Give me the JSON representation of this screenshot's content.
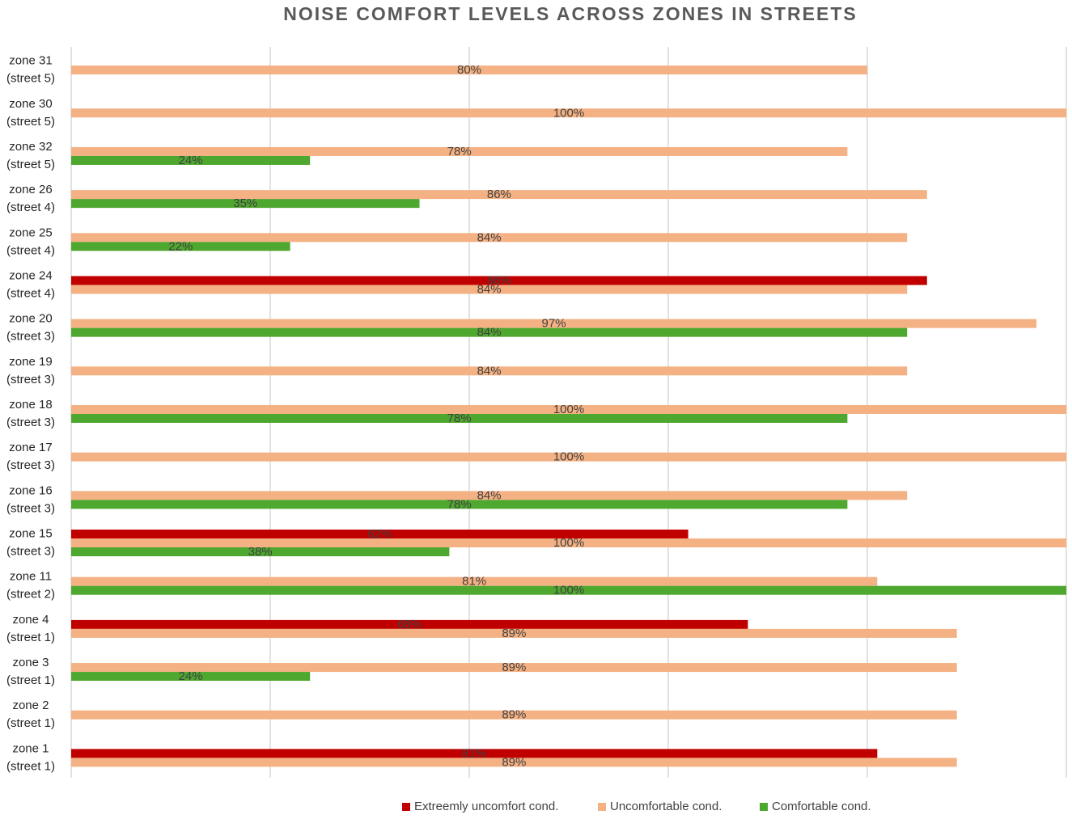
{
  "chart_data": {
    "type": "bar",
    "orientation": "horizontal",
    "title": "NOISE COMFORT LEVELS ACROSS ZONES IN STREETS",
    "xlim": [
      0,
      100
    ],
    "grid": true,
    "legend_position": "bottom",
    "categories": [
      {
        "zone": "zone 31",
        "street": "(street 5)"
      },
      {
        "zone": "zone 30",
        "street": "(street 5)"
      },
      {
        "zone": "zone 32",
        "street": "(street 5)"
      },
      {
        "zone": "zone 26",
        "street": "(street 4)"
      },
      {
        "zone": "zone 25",
        "street": "(street 4)"
      },
      {
        "zone": "zone 24",
        "street": "(street 4)"
      },
      {
        "zone": "zone 20",
        "street": "(street 3)"
      },
      {
        "zone": "zone 19",
        "street": "(street 3)"
      },
      {
        "zone": "zone 18",
        "street": "(street 3)"
      },
      {
        "zone": "zone 17",
        "street": "(street 3)"
      },
      {
        "zone": "zone 16",
        "street": "(street 3)"
      },
      {
        "zone": "zone 15",
        "street": "(street 3)"
      },
      {
        "zone": "zone 11",
        "street": "(street 2)"
      },
      {
        "zone": "zone 4",
        "street": "(street 1)"
      },
      {
        "zone": "zone 3",
        "street": "(street 1)"
      },
      {
        "zone": "zone 2",
        "street": "(street 1)"
      },
      {
        "zone": "zone 1",
        "street": "(street 1)"
      }
    ],
    "series": [
      {
        "name": "Extreemly uncomfort cond.",
        "color": "#c00000",
        "values": [
          null,
          null,
          null,
          null,
          null,
          86,
          null,
          null,
          null,
          null,
          null,
          62,
          null,
          68,
          null,
          null,
          81
        ]
      },
      {
        "name": "Uncomfortable cond.",
        "color": "#f4b183",
        "values": [
          80,
          100,
          78,
          86,
          84,
          84,
          97,
          84,
          100,
          100,
          84,
          100,
          81,
          89,
          89,
          89,
          89
        ]
      },
      {
        "name": "Comfortable cond.",
        "color": "#4ea72e",
        "values": [
          null,
          null,
          24,
          35,
          22,
          null,
          84,
          null,
          78,
          null,
          78,
          38,
          100,
          null,
          24,
          null,
          null
        ]
      }
    ]
  }
}
